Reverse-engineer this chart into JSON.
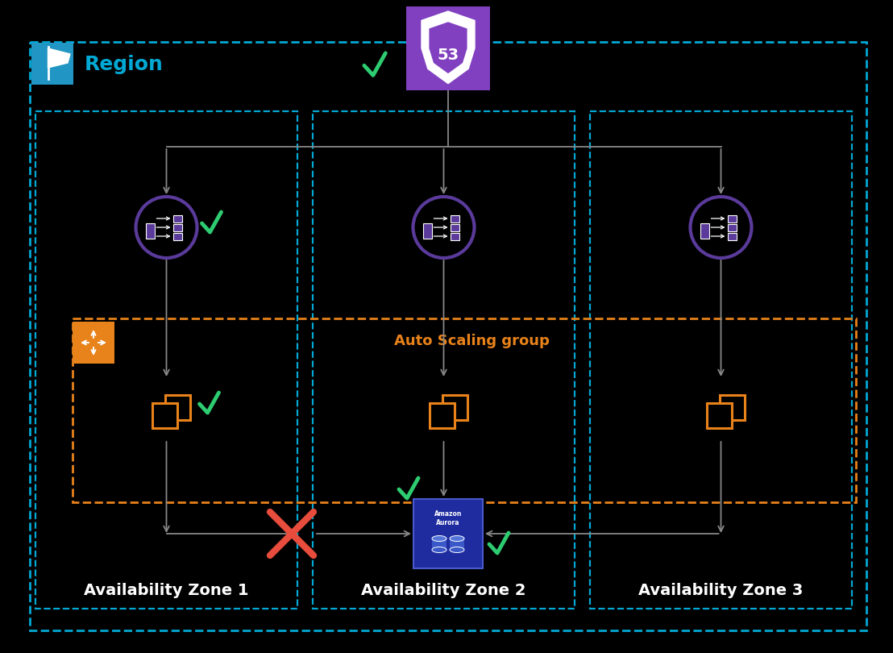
{
  "background_color": "#000000",
  "region_border_color": "#00a8d4",
  "az_border_color": "#00a8d4",
  "auto_scaling_border_color": "#e8821a",
  "region_label": "Region",
  "region_label_color": "#00a8d4",
  "region_flag_bg": "#2196c4",
  "az_labels": [
    "Availability Zone 1",
    "Availability Zone 2",
    "Availability Zone 3"
  ],
  "auto_scaling_label": "Auto Scaling group",
  "auto_scaling_label_color": "#e8821a",
  "route53_bg": "#8040c0",
  "elb_color": "#5a3a9a",
  "ec2_color": "#e8821a",
  "aurora_bg": "#2a35b0",
  "aurora_border": "#3a48cc",
  "check_color": "#2ecc71",
  "error_color": "#e74c3c",
  "arrow_color": "#888888",
  "region_label_fontsize": 18,
  "az_label_fontsize": 14,
  "auto_scaling_fontsize": 13
}
